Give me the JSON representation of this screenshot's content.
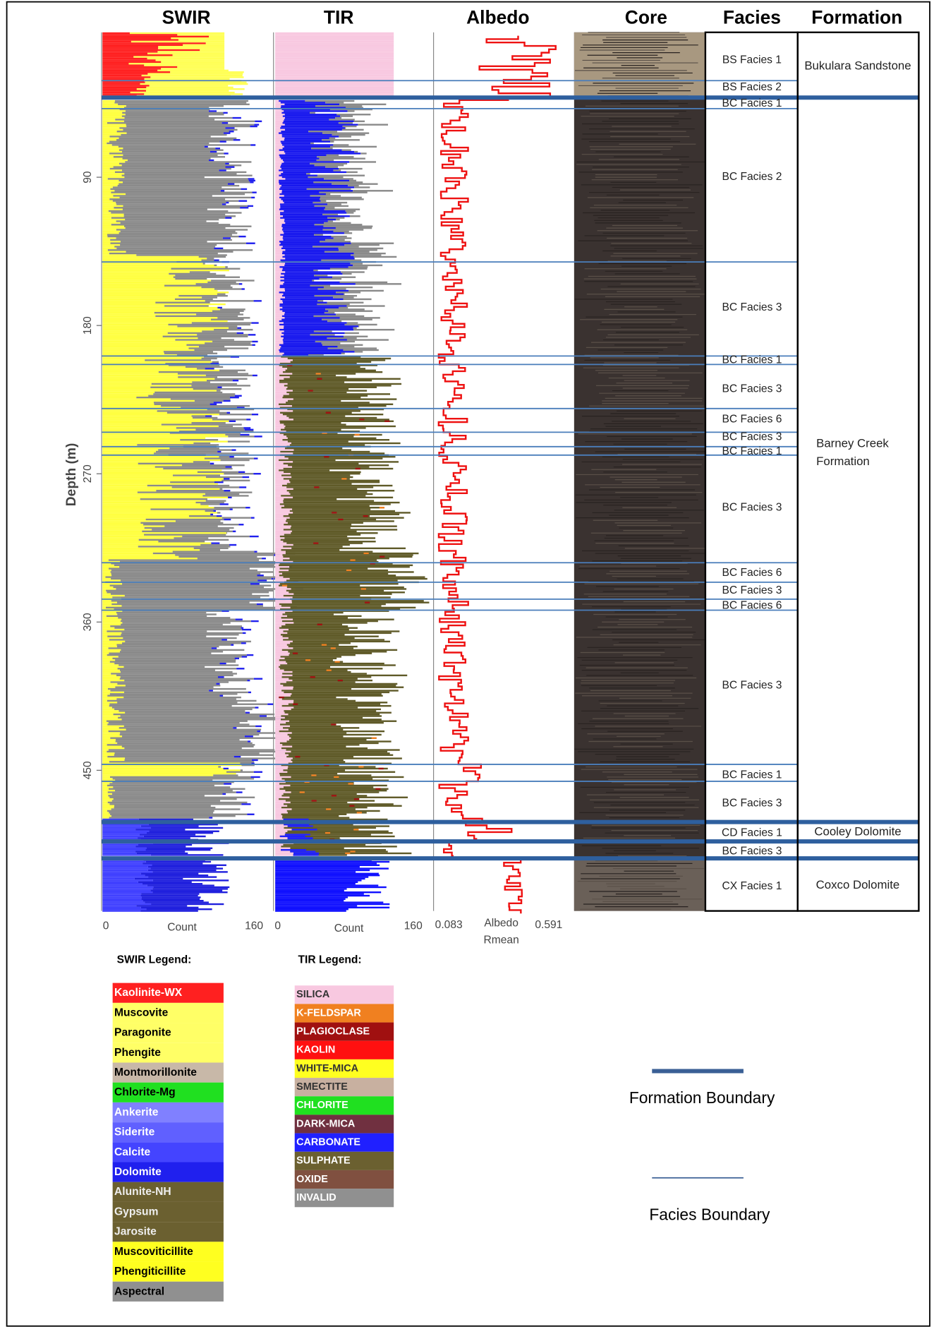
{
  "headers": {
    "swir": "SWIR",
    "tir": "TIR",
    "albedo": "Albedo",
    "core": "Core",
    "facies": "Facies",
    "formation": "Formation"
  },
  "depth_axis": {
    "label": "Depth (m)",
    "ticks": [
      90,
      180,
      270,
      360,
      450
    ]
  },
  "swir_axis": {
    "min": 0,
    "label": "Count",
    "max": 160
  },
  "tir_axis": {
    "min": 0,
    "label": "Count",
    "max": 160
  },
  "albedo_axis": {
    "min": 0.083,
    "label": "Albedo",
    "sublabel": "Rmean",
    "max": 0.591
  },
  "facies": [
    "BS Facies 1",
    "BS Facies 2",
    "BC Facies 1",
    "BC Facies 2",
    "BC Facies 3",
    "BC Facies 1",
    "BC Facies 3",
    "BC Facies 6",
    "BC Facies 3",
    "BC Facies 1",
    "BC Facies 3",
    "BC Facies 6",
    "BC Facies 3",
    "BC Facies 6",
    "BC Facies 3",
    "BC Facies 1",
    "BC Facies 3",
    "CD Facies 1",
    "BC Facies 3",
    "CX Facies 1"
  ],
  "formations": [
    [
      "Bukulara Sandstone"
    ],
    [
      "Barney Creek",
      "Formation"
    ],
    [
      "Cooley Dolomite"
    ],
    [
      "Coxco Dolomite"
    ]
  ],
  "swir_legend": {
    "title": "SWIR Legend:",
    "items": [
      "Kaolinite-WX",
      "Muscovite",
      "Paragonite",
      "Phengite",
      "Montmorillonite",
      "Chlorite-Mg",
      "Ankerite",
      "Siderite",
      "Calcite",
      "Dolomite",
      "Alunite-NH",
      "Gypsum",
      "Jarosite",
      "Muscoviticillite",
      "Phengiticillite",
      "Aspectral"
    ]
  },
  "tir_legend": {
    "title": "TIR Legend:",
    "items": [
      "SILICA",
      "K-FELDSPAR",
      "PLAGIOCLASE",
      "KAOLIN",
      "WHITE-MICA",
      "SMECTITE",
      "CHLORITE",
      "DARK-MICA",
      "CARBONATE",
      "SULPHATE",
      "OXIDE",
      "INVALID"
    ]
  },
  "key": {
    "formation": "Formation Boundary",
    "facies": "Facies Boundary"
  }
}
